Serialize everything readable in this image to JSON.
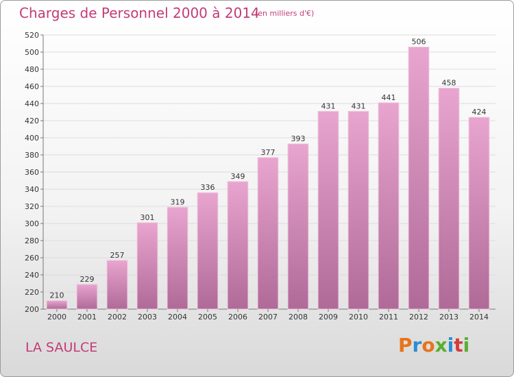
{
  "header": {
    "title": "Charges de Personnel 2000 à 2014",
    "subtitle": "(en milliers d'€)"
  },
  "footer": {
    "location": "LA SAULCE",
    "logo_text": "Proxiti",
    "logo_colors": [
      "#e8731a",
      "#2a8ed1",
      "#e8731a",
      "#58b030",
      "#2a8ed1",
      "#d63b3b",
      "#58b030"
    ]
  },
  "colors": {
    "text_accent": "#c23b77",
    "bar_top": "#e8a5cf",
    "bar_bottom": "#b06a98",
    "grid": "#dcdcdc"
  },
  "chart_data": {
    "type": "bar",
    "title": "Charges de Personnel 2000 à 2014",
    "subtitle": "(en milliers d'€)",
    "categories": [
      "2000",
      "2001",
      "2002",
      "2003",
      "2004",
      "2005",
      "2006",
      "2007",
      "2008",
      "2009",
      "2010",
      "2011",
      "2012",
      "2013",
      "2014"
    ],
    "values": [
      210,
      229,
      257,
      301,
      319,
      336,
      349,
      377,
      393,
      431,
      431,
      441,
      506,
      458,
      424
    ],
    "ylim": [
      200,
      520
    ],
    "yticks": [
      200,
      220,
      240,
      260,
      280,
      300,
      320,
      340,
      360,
      380,
      400,
      420,
      440,
      460,
      480,
      500,
      520
    ],
    "grid": true,
    "xlabel": "",
    "ylabel": ""
  }
}
